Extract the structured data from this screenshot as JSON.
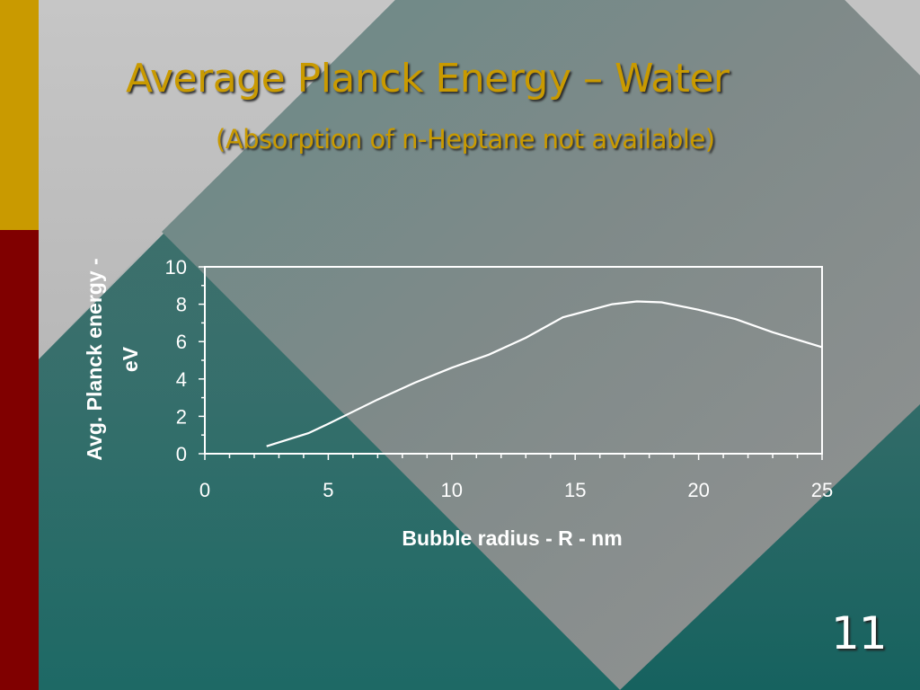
{
  "slide": {
    "title": "Average Planck Energy – Water",
    "subtitle": "(Absorption of n-Heptane not available)",
    "number": "11"
  },
  "colors": {
    "title": "#c99a00",
    "sidebar_top": "#c99a00",
    "sidebar_bottom": "#800000",
    "background": "#336b69",
    "diamond": "#8a8a8a",
    "line": "#ffffff"
  },
  "chart_data": {
    "type": "line",
    "title": "",
    "xlabel": "Bubble radius - R - nm",
    "ylabel_lines": [
      "Avg. Planck energy -",
      "eV"
    ],
    "xlim": [
      0,
      25
    ],
    "ylim": [
      0,
      10
    ],
    "xticks": [
      0,
      5,
      10,
      15,
      20,
      25
    ],
    "yticks": [
      0,
      2,
      4,
      6,
      8,
      10
    ],
    "grid": false,
    "legend": "none",
    "series": [
      {
        "x": [
          2.5,
          4.2,
          5.0,
          7.0,
          8.5,
          10.0,
          11.5,
          13.0,
          14.5,
          16.5,
          17.5,
          18.5,
          20.0,
          21.5,
          23.0,
          25.0
        ],
        "y": [
          0.4,
          1.1,
          1.6,
          2.9,
          3.8,
          4.6,
          5.3,
          6.2,
          7.3,
          8.0,
          8.15,
          8.1,
          7.7,
          7.2,
          6.5,
          5.7
        ]
      }
    ]
  }
}
